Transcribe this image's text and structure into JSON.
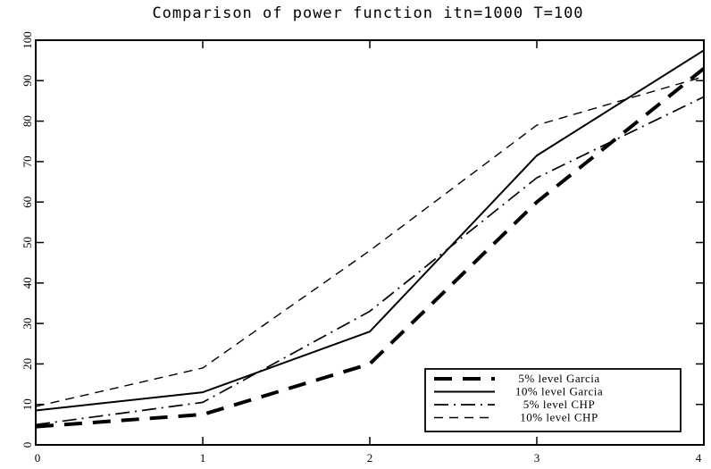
{
  "chart_data": {
    "type": "line",
    "title": "Comparison of power function itn=1000 T=100",
    "xlabel": "",
    "ylabel": "",
    "x": [
      0,
      1,
      2,
      3,
      4
    ],
    "xlim": [
      0,
      4
    ],
    "ylim": [
      0,
      100
    ],
    "xticks": [
      0,
      1,
      2,
      3,
      4
    ],
    "yticks": [
      0,
      10,
      20,
      30,
      40,
      50,
      60,
      70,
      80,
      90,
      100
    ],
    "grid": false,
    "legend_position": "bottom-right",
    "series": [
      {
        "name": "5% level Garcia",
        "values": [
          4.5,
          7.5,
          20,
          60,
          93
        ],
        "style": "heavy-dash"
      },
      {
        "name": "10% level Garcia",
        "values": [
          8.5,
          13,
          28,
          71.5,
          97.5
        ],
        "style": "solid"
      },
      {
        "name": "5% level CHP",
        "values": [
          5,
          10.5,
          33,
          66,
          86
        ],
        "style": "dash-dot"
      },
      {
        "name": "10% level CHP",
        "values": [
          9.5,
          19,
          48,
          79,
          91
        ],
        "style": "dash"
      }
    ],
    "colors": {
      "line": "#000000",
      "background": "#ffffff"
    }
  }
}
